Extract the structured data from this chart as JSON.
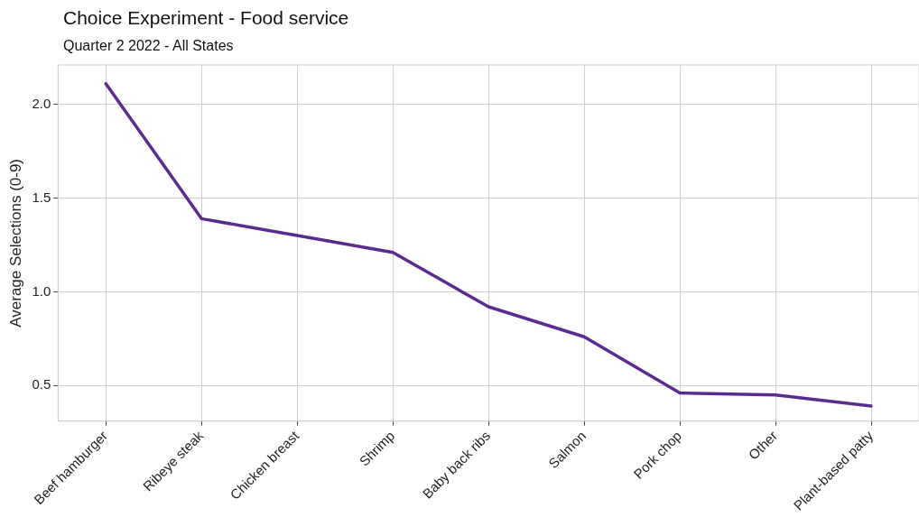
{
  "chart_data": {
    "type": "line",
    "title": "Choice Experiment -  Food service",
    "subtitle": "Quarter 2 2022 - All States",
    "ylabel": "Average Selections (0-9)",
    "categories": [
      "Beef hamburger",
      "Ribeye steak",
      "Chicken breast",
      "Shrimp",
      "Baby back ribs",
      "Salmon",
      "Pork chop",
      "Other",
      "Plant-based patty"
    ],
    "series": [
      {
        "color": "#5b2c8f",
        "values": [
          2.11,
          1.39,
          1.3,
          1.21,
          0.92,
          0.76,
          0.46,
          0.45,
          0.39
        ]
      }
    ],
    "ylim": [
      0.31,
      2.21
    ],
    "yticks": [
      {
        "value": 0.5,
        "label": "0.5"
      },
      {
        "value": 1,
        "label": "1.0"
      },
      {
        "value": 1.5,
        "label": "1.5"
      },
      {
        "value": 2,
        "label": "2.0"
      }
    ],
    "grid": true,
    "legend": false,
    "marker": "none",
    "line_style": "solid"
  }
}
